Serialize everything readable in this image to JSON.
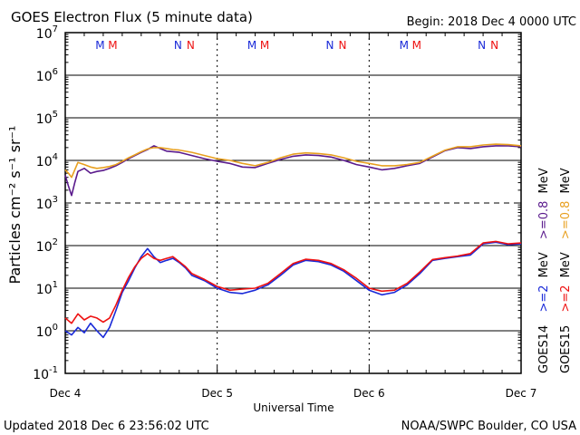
{
  "header": {
    "title": "GOES Electron Flux (5 minute data)",
    "begin": "Begin: 2018 Dec 4 0000 UTC"
  },
  "footer": {
    "updated": "Updated 2018 Dec  6 23:56:02 UTC",
    "credit": "NOAA/SWPC Boulder, CO USA"
  },
  "colors": {
    "goes14_ge08": "#5a1a8c",
    "goes15_ge08": "#e8a020",
    "goes14_ge2": "#1a2ad8",
    "goes15_ge2": "#ee1111",
    "marker_m": [
      "#1a2ad8",
      "#ee1111"
    ],
    "marker_n": [
      "#1a2ad8",
      "#ee1111"
    ]
  },
  "chart_data": {
    "type": "line",
    "title": "GOES Electron Flux (5 minute data)",
    "xlabel": "Universal Time",
    "ylabel": "Particles cm⁻² s⁻¹ sr⁻¹",
    "xlim": [
      0,
      72
    ],
    "ylim": [
      0.1,
      10000000
    ],
    "yscale": "log",
    "x_tick_labels": [
      {
        "x": 0,
        "label": "Dec 4"
      },
      {
        "x": 24,
        "label": "Dec 5"
      },
      {
        "x": 48,
        "label": "Dec 6"
      },
      {
        "x": 72,
        "label": "Dec 7"
      }
    ],
    "y_tick_labels": [
      {
        "base": "10",
        "exp": "7",
        "value": 10000000
      },
      {
        "base": "10",
        "exp": "6",
        "value": 1000000
      },
      {
        "base": "10",
        "exp": "5",
        "value": 100000
      },
      {
        "base": "10",
        "exp": "4",
        "value": 10000
      },
      {
        "base": "10",
        "exp": "3",
        "value": 1000
      },
      {
        "base": "10",
        "exp": "2",
        "value": 100
      },
      {
        "base": "10",
        "exp": "1",
        "value": 10
      },
      {
        "base": "10",
        "exp": "0",
        "value": 1
      },
      {
        "base": "10",
        "exp": "-1",
        "value": 0.1
      }
    ],
    "dashed_threshold": 1000,
    "markers": [
      {
        "x": 6.5,
        "letters": [
          "M",
          "M"
        ]
      },
      {
        "x": 18.8,
        "letters": [
          "N",
          "N"
        ]
      },
      {
        "x": 30.5,
        "letters": [
          "M",
          "M"
        ]
      },
      {
        "x": 42.8,
        "letters": [
          "N",
          "N"
        ]
      },
      {
        "x": 54.5,
        "letters": [
          "M",
          "M"
        ]
      },
      {
        "x": 66.8,
        "letters": [
          "N",
          "N"
        ]
      }
    ],
    "legend": {
      "right_labels": [
        {
          "satellite": "GOES14",
          "ge2": ">=2",
          "ge08": ">=0.8",
          "unit": "MeV"
        },
        {
          "satellite": "GOES15",
          "ge2": ">=2",
          "ge08": ">=0.8",
          "unit": "MeV"
        }
      ]
    },
    "series": [
      {
        "name": "GOES14 >=0.8 MeV",
        "x": [
          0,
          0.5,
          1,
          1.5,
          2,
          3,
          4,
          5,
          6,
          7,
          8,
          9,
          10,
          11,
          12,
          13,
          14,
          15,
          16,
          17,
          18,
          20,
          22,
          24,
          26,
          28,
          30,
          32,
          34,
          36,
          38,
          40,
          42,
          44,
          46,
          48,
          50,
          52,
          54,
          56,
          58,
          60,
          62,
          64,
          66,
          68,
          70,
          72
        ],
        "y": [
          4500,
          2500,
          1500,
          3000,
          5500,
          6500,
          5000,
          5500,
          5800,
          6500,
          7500,
          9000,
          11000,
          13000,
          15500,
          18000,
          22000,
          19000,
          16500,
          16000,
          15500,
          13000,
          11000,
          9500,
          8500,
          7000,
          6800,
          8500,
          10500,
          12500,
          13500,
          13000,
          12000,
          10000,
          8000,
          7000,
          6000,
          6500,
          7500,
          8500,
          12000,
          17000,
          20000,
          19000,
          21000,
          22000,
          22000,
          21000
        ]
      },
      {
        "name": "GOES15 >=0.8 MeV",
        "x": [
          0,
          0.5,
          1,
          1.5,
          2,
          3,
          4,
          5,
          6,
          7,
          8,
          9,
          10,
          11,
          12,
          13,
          14,
          15,
          16,
          17,
          18,
          20,
          22,
          24,
          26,
          28,
          30,
          32,
          34,
          36,
          38,
          40,
          42,
          44,
          46,
          48,
          50,
          52,
          54,
          56,
          58,
          60,
          62,
          64,
          66,
          68,
          70,
          72
        ],
        "y": [
          6000,
          5000,
          4000,
          6000,
          9000,
          8000,
          7000,
          6500,
          6800,
          7200,
          8000,
          9500,
          11500,
          13500,
          16000,
          18500,
          20000,
          20000,
          19000,
          18000,
          17500,
          15500,
          13000,
          11000,
          10000,
          8500,
          7500,
          9000,
          11500,
          14000,
          15000,
          14500,
          13500,
          11500,
          9500,
          8500,
          7500,
          7500,
          8000,
          9000,
          12500,
          17500,
          21000,
          21000,
          23000,
          24000,
          23500,
          22000
        ]
      },
      {
        "name": "GOES14 >=2 MeV",
        "x": [
          0,
          1,
          2,
          3,
          4,
          5,
          6,
          7,
          8,
          9,
          10,
          11,
          12,
          13,
          14,
          15,
          16,
          17,
          18,
          19,
          20,
          22,
          24,
          26,
          28,
          30,
          32,
          34,
          36,
          38,
          40,
          42,
          44,
          46,
          48,
          50,
          52,
          54,
          56,
          58,
          60,
          62,
          64,
          66,
          68,
          70,
          72
        ],
        "y": [
          1.0,
          0.8,
          1.2,
          0.9,
          1.5,
          1.0,
          0.7,
          1.2,
          3.0,
          8.0,
          15.0,
          30.0,
          55.0,
          85.0,
          55.0,
          40.0,
          45.0,
          50.0,
          40.0,
          30.0,
          20.0,
          15.0,
          10.0,
          8.0,
          7.5,
          9.0,
          12.0,
          20.0,
          35.0,
          45.0,
          42.0,
          35.0,
          25.0,
          15.0,
          9.0,
          7.0,
          8.0,
          12.0,
          22.0,
          45.0,
          50.0,
          55.0,
          60.0,
          110.0,
          120.0,
          105.0,
          110.0
        ]
      },
      {
        "name": "GOES15 >=2 MeV",
        "x": [
          0,
          1,
          2,
          3,
          4,
          5,
          6,
          7,
          8,
          9,
          10,
          11,
          12,
          13,
          14,
          15,
          16,
          17,
          18,
          19,
          20,
          22,
          24,
          26,
          28,
          30,
          32,
          34,
          36,
          38,
          40,
          42,
          44,
          46,
          48,
          50,
          52,
          54,
          56,
          58,
          60,
          62,
          64,
          66,
          68,
          70,
          72
        ],
        "y": [
          2.0,
          1.5,
          2.5,
          1.8,
          2.2,
          2.0,
          1.6,
          2.0,
          4.0,
          9.0,
          18.0,
          32.0,
          50.0,
          65.0,
          50.0,
          45.0,
          50.0,
          55.0,
          42.0,
          32.0,
          22.0,
          16.0,
          11.0,
          9.0,
          9.5,
          10.0,
          13.0,
          22.0,
          38.0,
          48.0,
          45.0,
          38.0,
          27.0,
          17.0,
          10.0,
          8.5,
          9.0,
          13.0,
          24.0,
          47.0,
          52.0,
          57.0,
          65.0,
          115.0,
          125.0,
          110.0,
          115.0
        ]
      }
    ]
  }
}
